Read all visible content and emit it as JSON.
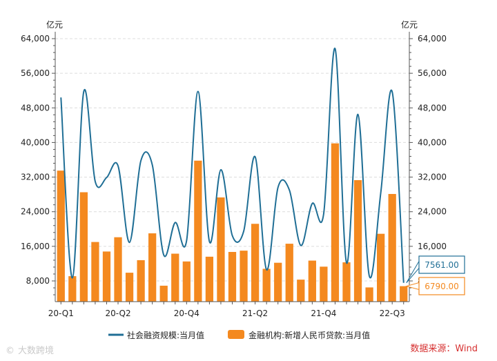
{
  "chart_data": {
    "type": "bar+line",
    "left_unit": "亿元",
    "right_unit": "亿元",
    "y_ticks": [
      "64,000",
      "56,000",
      "48,000",
      "40,000",
      "32,000",
      "24,000",
      "16,000",
      "8,000"
    ],
    "y_tick_values": [
      64000,
      56000,
      48000,
      40000,
      32000,
      24000,
      16000,
      8000
    ],
    "ylim": [
      2000,
      66000
    ],
    "x_tick_labels": [
      {
        "label": "20-Q1",
        "index": 0
      },
      {
        "label": "20-Q2",
        "index": 5
      },
      {
        "label": "20-Q4",
        "index": 11
      },
      {
        "label": "21-Q2",
        "index": 17
      },
      {
        "label": "21-Q4",
        "index": 23
      },
      {
        "label": "22-Q3",
        "index": 29
      }
    ],
    "months": [
      "2020-01",
      "2020-02",
      "2020-03",
      "2020-04",
      "2020-05",
      "2020-06",
      "2020-07",
      "2020-08",
      "2020-09",
      "2020-10",
      "2020-11",
      "2020-12",
      "2021-01",
      "2021-02",
      "2021-03",
      "2021-04",
      "2021-05",
      "2021-06",
      "2021-07",
      "2021-08",
      "2021-09",
      "2021-10",
      "2021-11",
      "2021-12",
      "2022-01",
      "2022-02",
      "2022-03",
      "2022-04",
      "2022-05",
      "2022-06",
      "2022-07"
    ],
    "series": [
      {
        "name": "社会融资规模:当月值",
        "kind": "line",
        "color": "#1f6e95",
        "values": [
          50400,
          8700,
          51800,
          31000,
          31900,
          34600,
          16900,
          35800,
          34800,
          14000,
          21500,
          17300,
          51800,
          17100,
          33700,
          18500,
          19500,
          36700,
          10600,
          29600,
          29000,
          16200,
          25900,
          23500,
          61700,
          12200,
          46500,
          9100,
          28400,
          51700,
          7561
        ]
      },
      {
        "name": "金融机构:新增人民币贷款:当月值",
        "kind": "bar",
        "color": "#f4891f",
        "values": [
          33500,
          9100,
          28500,
          17000,
          14800,
          18100,
          9900,
          12800,
          19000,
          6900,
          14300,
          12500,
          35800,
          13600,
          27300,
          14700,
          15000,
          21200,
          10800,
          12200,
          16600,
          8300,
          12700,
          11300,
          39800,
          12300,
          31300,
          6500,
          18900,
          28100,
          6790
        ]
      }
    ],
    "callouts": {
      "line_last": "7561.00",
      "bar_last": "6790.00"
    },
    "grid": true,
    "legend_position": "bottom"
  },
  "source": "数据来源：Wind",
  "watermark": "大数跨境"
}
